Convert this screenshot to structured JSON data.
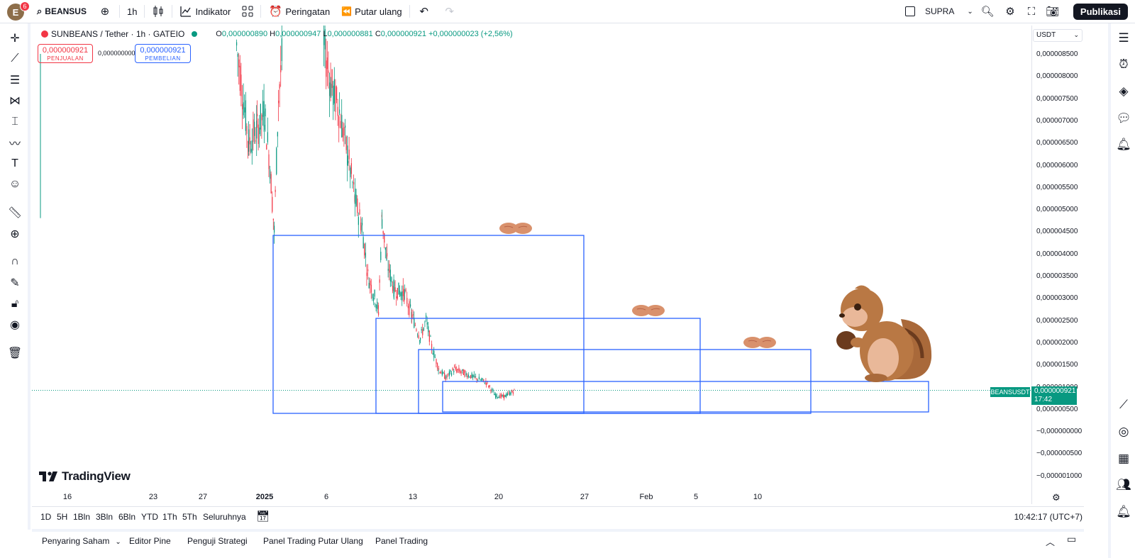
{
  "header": {
    "avatar_letter": "E",
    "avatar_badge": "6",
    "symbol_search": "BEANSUS",
    "interval": "1h",
    "indicators_label": "Indikator",
    "alerts_label": "Peringatan",
    "replay_label": "Putar ulang",
    "layout_name": "SUPRA",
    "publish_label": "Publikasi"
  },
  "legend": {
    "symbol": "SUNBEANS / Tether · 1h · GATEIO",
    "o_label": "O",
    "o_value": "0,000000890",
    "h_label": "H",
    "h_value": "0,000000947",
    "l_label": "L",
    "l_value": "0,000000881",
    "c_label": "C",
    "c_value": "0,000000921",
    "change": "+0,000000023 (+2,56%)"
  },
  "trade": {
    "sell_price": "0,000000921",
    "sell_label": "PENJUALAN",
    "spread": "0,000000000",
    "buy_price": "0,000000921",
    "buy_label": "PEMBELIAN"
  },
  "price_axis": {
    "currency": "USDT",
    "labels": [
      "0,000008500",
      "0,000008000",
      "0,000007500",
      "0,000007000",
      "0,000006500",
      "0,000006000",
      "0,000005500",
      "0,000005000",
      "0,000004500",
      "0,000004000",
      "0,000003500",
      "0,000003000",
      "0,000002500",
      "0,000002000",
      "0,000001500",
      "0,000001000",
      "0,000000500",
      "−0,000000000",
      "−0,000000500",
      "−0,000001000"
    ],
    "current_symbol": "BEANSUSDT",
    "current_price": "0,000000921",
    "countdown": "17:42"
  },
  "time_axis": {
    "labels": [
      "16",
      "23",
      "27",
      "2025",
      "6",
      "13",
      "20",
      "27",
      "Feb",
      "5",
      "10"
    ]
  },
  "branding": {
    "logo_text": "TradingView"
  },
  "range_bar": {
    "ranges": [
      "1D",
      "5H",
      "1Bln",
      "3Bln",
      "6Bln",
      "YTD",
      "1Th",
      "5Th",
      "Seluruhnya"
    ],
    "clock": "10:42:17 (UTC+7)"
  },
  "bottom_panel": {
    "tabs": [
      "Penyaring Saham",
      "Editor Pine",
      "Penguji Strategi",
      "Panel Trading Putar Ulang",
      "Panel Trading"
    ]
  },
  "colors": {
    "up": "#089981",
    "down": "#f23645",
    "box_line": "#2962ff",
    "accent": "#131722"
  },
  "chart_data": {
    "type": "candlestick",
    "x_labels": [
      "16",
      "23",
      "27",
      "2025",
      "6",
      "13",
      "20",
      "27",
      "Feb",
      "5",
      "10"
    ],
    "ylim": [
      -1e-06,
      8.6e-06
    ],
    "close_path": [
      [
        "27",
        8.5e-06
      ],
      [
        "2025",
        4.5e-06
      ],
      [
        "6",
        8.5e-06
      ],
      [
        "13",
        2.5e-06
      ],
      [
        "20",
        7.5e-07
      ],
      [
        "20",
        9.21e-07
      ]
    ],
    "drawn_rectangles": [
      {
        "x_from": "2025",
        "x_to": "27",
        "y_top": 4.41e-06
      },
      {
        "x_from": "13",
        "x_to": "5",
        "y_top": 2.5e-06
      },
      {
        "x_from": "13",
        "x_to": "10",
        "y_top": 1.8e-06
      },
      {
        "x_from": "13",
        "x_to": "end",
        "y_top": 1.08e-06,
        "y_bottom": 4e-07
      }
    ],
    "last_price": 9.21e-07
  }
}
